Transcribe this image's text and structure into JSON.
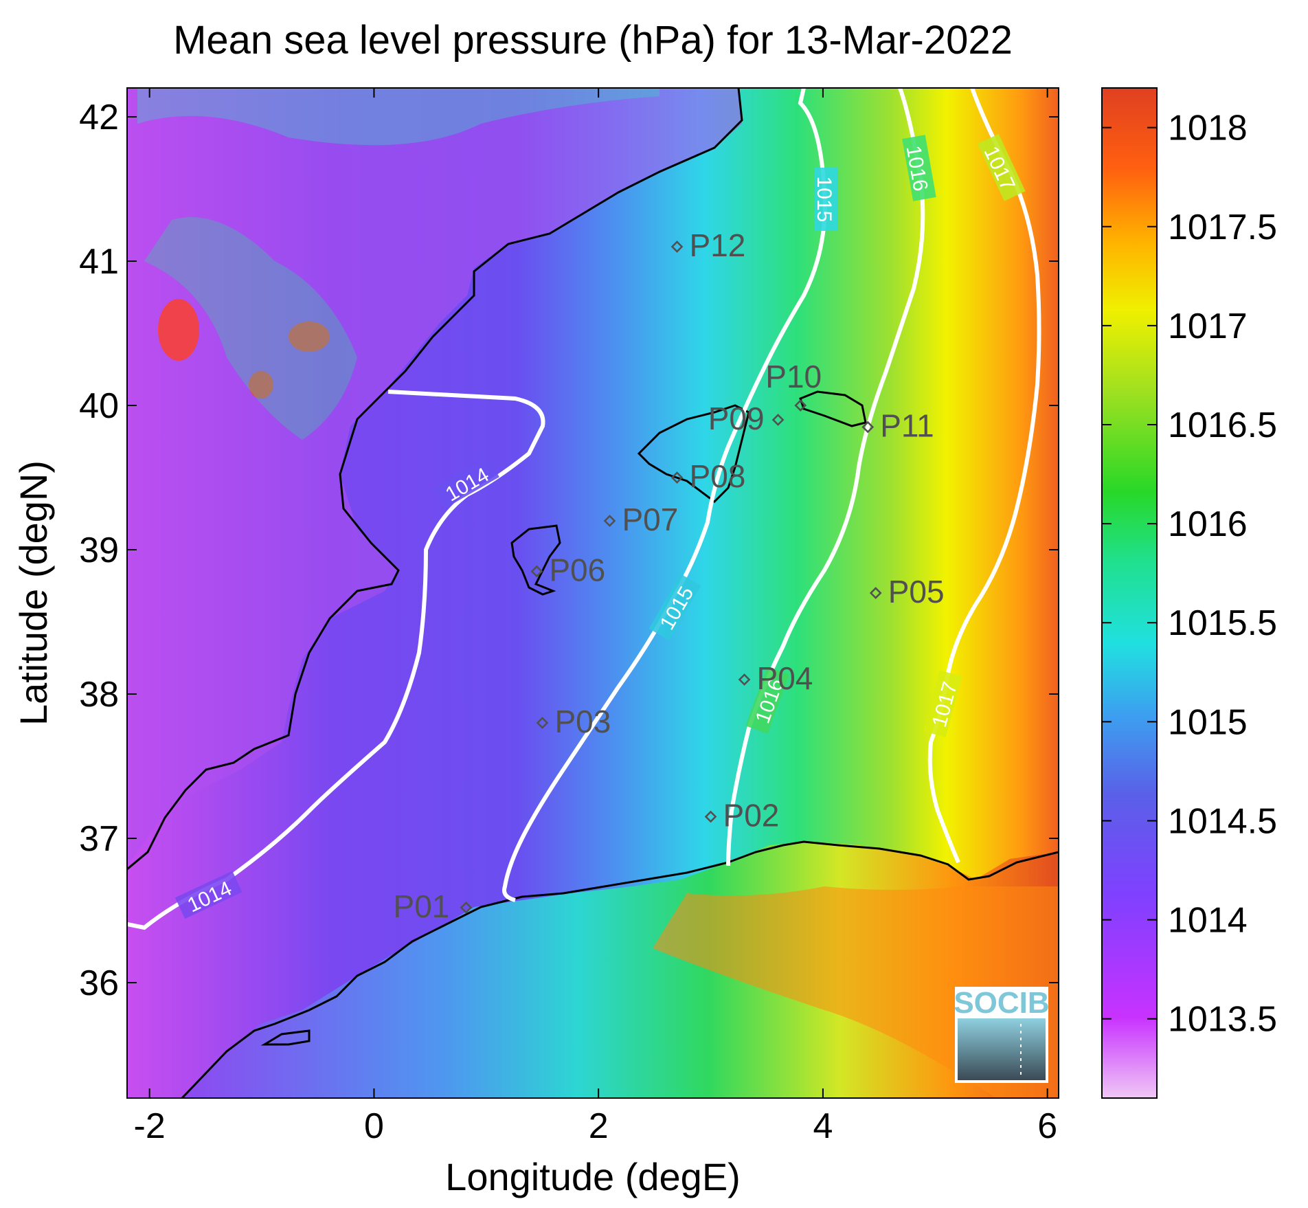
{
  "title": "Mean sea level pressure (hPa) for 13-Mar-2022",
  "axes": {
    "xlabel": "Longitude (degE)",
    "ylabel": "Latitude (degN)",
    "xlim": [
      -2.2,
      6.1
    ],
    "ylim": [
      35.2,
      42.2
    ],
    "xticks": [
      "-2",
      "0",
      "2",
      "4",
      "6"
    ],
    "yticks": [
      "36",
      "37",
      "38",
      "39",
      "40",
      "41",
      "42"
    ]
  },
  "colorbar": {
    "range": [
      1013.1,
      1018.2
    ],
    "ticks": [
      "1013.5",
      "1014",
      "1014.5",
      "1015",
      "1015.5",
      "1016",
      "1016.5",
      "1017",
      "1017.5",
      "1018"
    ],
    "colormap": [
      "#f0c8f5",
      "#c832ff",
      "#8040ff",
      "#5a60e8",
      "#3ca0f0",
      "#20e0e0",
      "#20e090",
      "#28d828",
      "#a0e020",
      "#f0f000",
      "#ffb000",
      "#ff6010",
      "#e04020"
    ]
  },
  "stations": [
    {
      "id": "P01",
      "lon": 0.82,
      "lat": 36.52
    },
    {
      "id": "P02",
      "lon": 3.0,
      "lat": 37.15
    },
    {
      "id": "P03",
      "lon": 1.5,
      "lat": 37.8
    },
    {
      "id": "P04",
      "lon": 3.3,
      "lat": 38.1
    },
    {
      "id": "P05",
      "lon": 4.47,
      "lat": 38.7
    },
    {
      "id": "P06",
      "lon": 1.45,
      "lat": 38.85
    },
    {
      "id": "P07",
      "lon": 2.1,
      "lat": 39.2
    },
    {
      "id": "P08",
      "lon": 2.7,
      "lat": 39.5
    },
    {
      "id": "P09",
      "lon": 3.6,
      "lat": 39.9
    },
    {
      "id": "P10",
      "lon": 3.8,
      "lat": 40.0
    },
    {
      "id": "P11",
      "lon": 4.4,
      "lat": 39.85
    },
    {
      "id": "P12",
      "lon": 2.7,
      "lat": 41.1
    }
  ],
  "contours": [
    {
      "level": "1014",
      "labels": [
        "1014",
        "1014"
      ]
    },
    {
      "level": "1015",
      "labels": [
        "1015",
        "1015"
      ]
    },
    {
      "level": "1016",
      "labels": [
        "1016",
        "1016"
      ]
    },
    {
      "level": "1017",
      "labels": [
        "1017",
        "1017"
      ]
    }
  ],
  "logo": "SOCIB"
}
